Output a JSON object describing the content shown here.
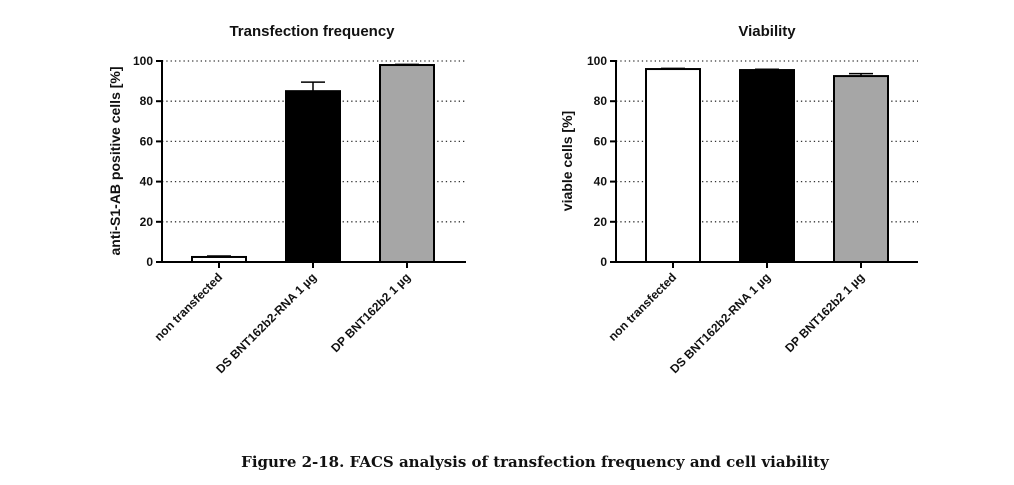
{
  "caption": "Figure 2-18.  FACS analysis of transfection frequency and cell viability",
  "chart_data": [
    {
      "type": "bar",
      "title": "Transfection frequency",
      "ylabel": "anti-S1-AB positive cells [%]",
      "xlabel": "",
      "ylim": [
        0,
        100
      ],
      "yticks": [
        0,
        20,
        40,
        60,
        80,
        100
      ],
      "grid": "horizontal dotted",
      "categories": [
        "non transfected",
        "DS BNT162b2-RNA 1 µg",
        "DP BNT162b2 1 µg"
      ],
      "values": [
        2.5,
        85,
        98
      ],
      "errors": [
        0.5,
        4.5,
        0.3
      ],
      "colors": [
        "#ffffff",
        "#000000",
        "#a6a6a6"
      ]
    },
    {
      "type": "bar",
      "title": "Viability",
      "ylabel": "viable cells [%]",
      "xlabel": "",
      "ylim": [
        0,
        100
      ],
      "yticks": [
        0,
        20,
        40,
        60,
        80,
        100
      ],
      "grid": "horizontal dotted",
      "categories": [
        "non transfected",
        "DS BNT162b2-RNA 1 µg",
        "DP BNT162b2 1 µg"
      ],
      "values": [
        96,
        95.5,
        92.5
      ],
      "errors": [
        0.3,
        0.4,
        1.2
      ],
      "colors": [
        "#ffffff",
        "#000000",
        "#a6a6a6"
      ]
    }
  ]
}
